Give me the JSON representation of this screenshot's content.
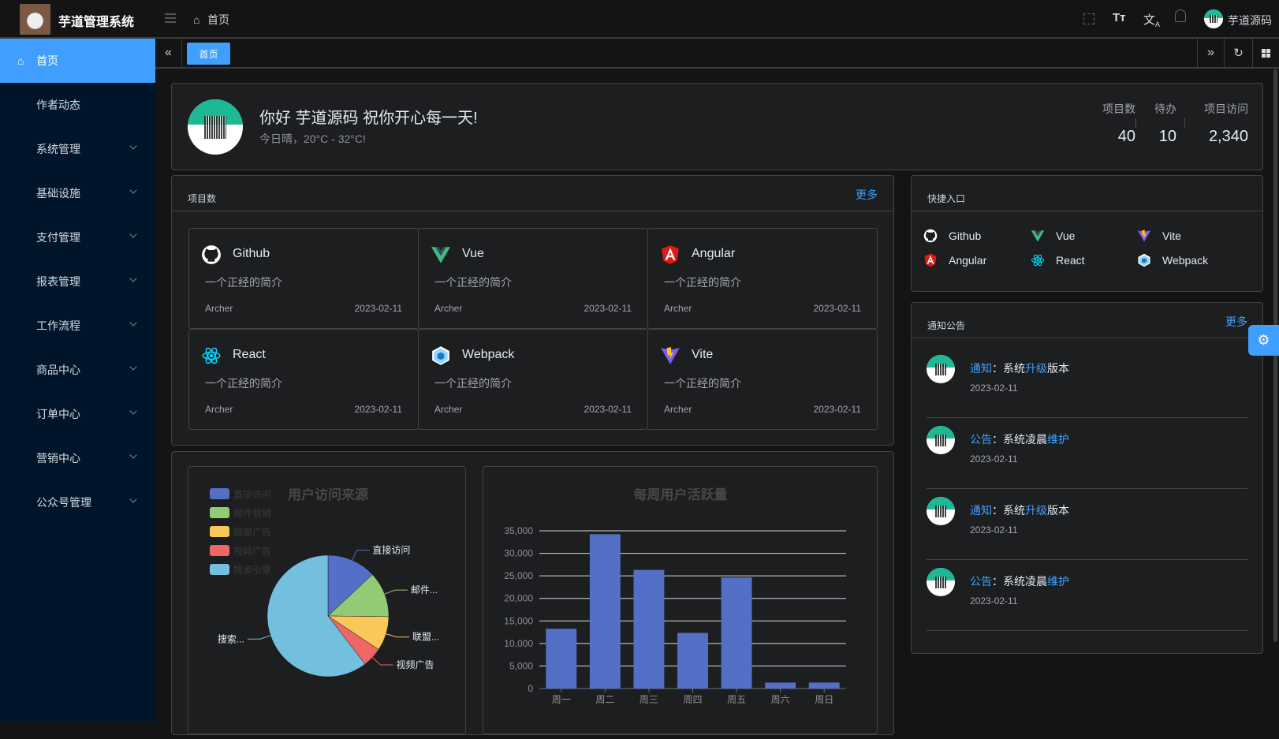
{
  "app": {
    "title": "芋道管理系统"
  },
  "header": {
    "breadcrumb": "首页",
    "icons": [
      "menu-fold-icon",
      "home-icon",
      "fullscreen-icon",
      "font-size-icon",
      "translate-icon",
      "bell-icon"
    ],
    "user_name": "芋道源码"
  },
  "sidebar": {
    "items": [
      {
        "label": "首页",
        "active": true,
        "icon": "home-icon"
      },
      {
        "label": "作者动态"
      },
      {
        "label": "系统管理",
        "has_children": true
      },
      {
        "label": "基础设施",
        "has_children": true
      },
      {
        "label": "支付管理",
        "has_children": true
      },
      {
        "label": "报表管理",
        "has_children": true
      },
      {
        "label": "工作流程",
        "has_children": true
      },
      {
        "label": "商品中心",
        "has_children": true
      },
      {
        "label": "订单中心",
        "has_children": true
      },
      {
        "label": "营销中心",
        "has_children": true
      },
      {
        "label": "公众号管理",
        "has_children": true
      }
    ]
  },
  "tabs": {
    "items": [
      {
        "label": "首页",
        "active": true
      }
    ]
  },
  "welcome": {
    "greeting": "你好 芋道源码 祝你开心每一天!",
    "weather": "今日晴，20°C - 32°C!",
    "stats": [
      {
        "label": "项目数",
        "value": "40"
      },
      {
        "label": "待办",
        "value": "10"
      },
      {
        "label": "项目访问",
        "value": "2,340"
      }
    ]
  },
  "projects": {
    "title": "项目数",
    "more": "更多",
    "items": [
      {
        "name": "Github",
        "icon": "github",
        "desc": "一个正经的简介",
        "author": "Archer",
        "date": "2023-02-11"
      },
      {
        "name": "Vue",
        "icon": "vue",
        "desc": "一个正经的简介",
        "author": "Archer",
        "date": "2023-02-11"
      },
      {
        "name": "Angular",
        "icon": "angular",
        "desc": "一个正经的简介",
        "author": "Archer",
        "date": "2023-02-11"
      },
      {
        "name": "React",
        "icon": "react",
        "desc": "一个正经的简介",
        "author": "Archer",
        "date": "2023-02-11"
      },
      {
        "name": "Webpack",
        "icon": "webpack",
        "desc": "一个正经的简介",
        "author": "Archer",
        "date": "2023-02-11"
      },
      {
        "name": "Vite",
        "icon": "vite",
        "desc": "一个正经的简介",
        "author": "Archer",
        "date": "2023-02-11"
      }
    ]
  },
  "shortcuts": {
    "title": "快捷入口",
    "items": [
      {
        "name": "Github",
        "icon": "github"
      },
      {
        "name": "Vue",
        "icon": "vue"
      },
      {
        "name": "Vite",
        "icon": "vite"
      },
      {
        "name": "Angular",
        "icon": "angular"
      },
      {
        "name": "React",
        "icon": "react"
      },
      {
        "name": "Webpack",
        "icon": "webpack"
      }
    ]
  },
  "notices": {
    "title": "通知公告",
    "more": "更多",
    "items": [
      {
        "type": "通知",
        "sep": "：",
        "pre": "系统",
        "hl": "升级",
        "post": "版本",
        "date": "2023-02-11"
      },
      {
        "type": "公告",
        "sep": "：",
        "pre": "系统凌晨",
        "hl": "维护",
        "post": "",
        "date": "2023-02-11"
      },
      {
        "type": "通知",
        "sep": "：",
        "pre": "系统",
        "hl": "升级",
        "post": "版本",
        "date": "2023-02-11"
      },
      {
        "type": "公告",
        "sep": "：",
        "pre": "系统凌晨",
        "hl": "维护",
        "post": "",
        "date": "2023-02-11"
      }
    ]
  },
  "colors": {
    "accent": "#409eff",
    "sidebar": "#001529",
    "panel": "#1d1e1f"
  },
  "chart_data": [
    {
      "type": "pie",
      "title": "用户访问来源",
      "legend_position": "top-left",
      "categories": [
        "直接访问",
        "邮件营销",
        "联盟广告",
        "视频广告",
        "搜索引擎"
      ],
      "values": [
        335,
        310,
        234,
        135,
        1548
      ],
      "labels": [
        "直接访问",
        "邮件...",
        "联盟...",
        "视频广告",
        "搜索..."
      ],
      "colors": [
        "#5470c6",
        "#91cc75",
        "#fac858",
        "#ee6666",
        "#73c0de"
      ]
    },
    {
      "type": "bar",
      "title": "每周用户活跃量",
      "categories": [
        "周一",
        "周二",
        "周三",
        "周四",
        "周五",
        "周六",
        "周日"
      ],
      "values": [
        13253,
        34235,
        26321,
        12340,
        24643,
        1322,
        1324
      ],
      "ylim": [
        0,
        35000
      ],
      "yticks": [
        "0",
        "5,000",
        "10,000",
        "15,000",
        "20,000",
        "25,000",
        "30,000",
        "35,000"
      ],
      "grid": true,
      "color": "#5470c6"
    }
  ]
}
